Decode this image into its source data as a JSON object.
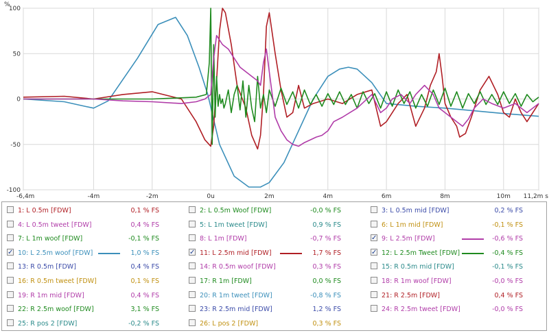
{
  "chart_data": {
    "type": "line",
    "ylabel": "%",
    "xunit": "s",
    "ylim": [
      -100,
      100
    ],
    "xlim": [
      -0.0064,
      0.0112
    ],
    "grid": true,
    "y_ticks": [
      {
        "v": 100,
        "label": "100"
      },
      {
        "v": 50,
        "label": "50"
      },
      {
        "v": 0,
        "label": "0"
      },
      {
        "v": -50,
        "label": "-50"
      },
      {
        "v": -100,
        "label": "-100"
      }
    ],
    "x_ticks": [
      {
        "v": -0.0064,
        "label": "-6,4m"
      },
      {
        "v": -0.004,
        "label": "-4m"
      },
      {
        "v": -0.002,
        "label": "-2m"
      },
      {
        "v": 0,
        "label": "0u"
      },
      {
        "v": 0.002,
        "label": "2m"
      },
      {
        "v": 0.004,
        "label": "4m"
      },
      {
        "v": 0.006,
        "label": "6m"
      },
      {
        "v": 0.008,
        "label": "8m"
      },
      {
        "v": 0.01,
        "label": "10m"
      },
      {
        "v": 0.0112,
        "label": "11,2m s"
      }
    ],
    "series": [
      {
        "name": "10: L 2.5m woof [FDW]",
        "color": "#3b8fba",
        "x": [
          -0.0064,
          -0.005,
          -0.0043,
          -0.004,
          -0.0035,
          -0.0025,
          -0.0018,
          -0.0012,
          -0.0008,
          -0.0004,
          -0.0001,
          0.0003,
          0.0008,
          0.0013,
          0.0017,
          0.002,
          0.0025,
          0.003,
          0.0035,
          0.004,
          0.0044,
          0.0047,
          0.005,
          0.0055,
          0.006,
          0.007,
          0.008,
          0.009,
          0.01,
          0.0112
        ],
        "y": [
          0,
          -3,
          -8,
          -10,
          -2,
          45,
          82,
          90,
          70,
          35,
          5,
          -50,
          -85,
          -97,
          -97,
          -92,
          -70,
          -35,
          0,
          25,
          33,
          35,
          33,
          18,
          -5,
          -8,
          -10,
          -13,
          -16,
          -19
        ]
      },
      {
        "name": "11: L 2.5m mid [FDW]",
        "color": "#b01e24",
        "x": [
          -0.0064,
          -0.005,
          -0.004,
          -0.003,
          -0.002,
          -0.001,
          -0.0005,
          -0.0002,
          0.0,
          0.0001,
          0.0002,
          0.0003,
          0.0004,
          0.0005,
          0.0007,
          0.0009,
          0.0012,
          0.0014,
          0.0016,
          0.0017,
          0.0018,
          0.0019,
          0.002,
          0.0022,
          0.0024,
          0.0026,
          0.0028,
          0.003,
          0.0032,
          0.0035,
          0.004,
          0.0045,
          0.005,
          0.0055,
          0.0058,
          0.006,
          0.0062,
          0.0064,
          0.0067,
          0.007,
          0.0073,
          0.0075,
          0.0077,
          0.0078,
          0.0079,
          0.008,
          0.0082,
          0.0084,
          0.0085,
          0.0087,
          0.0089,
          0.0092,
          0.0095,
          0.0098,
          0.01,
          0.0102,
          0.0104,
          0.0106,
          0.0108,
          0.0112
        ],
        "y": [
          2,
          3,
          0,
          5,
          8,
          0,
          -25,
          -45,
          -52,
          -30,
          20,
          75,
          100,
          95,
          60,
          15,
          -10,
          -40,
          -55,
          -40,
          5,
          80,
          95,
          50,
          10,
          -20,
          -15,
          15,
          -10,
          -5,
          0,
          -5,
          5,
          10,
          -30,
          -25,
          -15,
          -5,
          5,
          -30,
          -10,
          15,
          30,
          50,
          25,
          -5,
          -20,
          -30,
          -42,
          -38,
          -20,
          10,
          25,
          5,
          -15,
          -20,
          0,
          -15,
          -25,
          -5
        ]
      },
      {
        "name": "12: L 2.5m Tweet [FDW]",
        "color": "#1e8a1e",
        "x": [
          -0.0064,
          -0.004,
          -0.002,
          -0.0005,
          -0.00015,
          -5e-05,
          0.0,
          5e-05,
          0.0001,
          0.00015,
          0.0002,
          0.00025,
          0.0003,
          0.00035,
          0.0004,
          0.00045,
          0.0005,
          0.0006,
          0.0007,
          0.0008,
          0.0009,
          0.001,
          0.0011,
          0.0012,
          0.0013,
          0.0014,
          0.0015,
          0.0016,
          0.0017,
          0.0018,
          0.0019,
          0.002,
          0.0022,
          0.0024,
          0.0026,
          0.0028,
          0.003,
          0.0032,
          0.0034,
          0.0036,
          0.0038,
          0.004,
          0.0042,
          0.0044,
          0.0046,
          0.0048,
          0.005,
          0.0052,
          0.0054,
          0.0056,
          0.0058,
          0.006,
          0.0062,
          0.0064,
          0.0066,
          0.0068,
          0.007,
          0.0072,
          0.0074,
          0.0076,
          0.0078,
          0.008,
          0.0082,
          0.0084,
          0.0086,
          0.0088,
          0.009,
          0.0092,
          0.0094,
          0.0096,
          0.0098,
          0.01,
          0.0102,
          0.0104,
          0.0106,
          0.0108,
          0.011,
          0.0112
        ],
        "y": [
          0,
          0,
          0,
          2,
          5,
          40,
          100,
          -50,
          60,
          -20,
          25,
          -8,
          5,
          -5,
          0,
          -10,
          -5,
          10,
          -15,
          5,
          15,
          -12,
          20,
          -20,
          15,
          -10,
          -25,
          25,
          -10,
          5,
          -15,
          10,
          -8,
          12,
          -6,
          8,
          -10,
          10,
          -6,
          5,
          -8,
          6,
          -6,
          8,
          -6,
          5,
          -10,
          8,
          -5,
          6,
          -10,
          8,
          -8,
          10,
          -5,
          8,
          -10,
          5,
          -8,
          10,
          -6,
          12,
          -8,
          8,
          -10,
          6,
          -5,
          8,
          -6,
          5,
          -6,
          8,
          -5,
          6,
          -8,
          5,
          -3,
          2
        ]
      },
      {
        "name": "9: L 2.5m [FDW]",
        "color": "#b03ba8",
        "x": [
          -0.0064,
          -0.004,
          -0.003,
          -0.002,
          -0.001,
          -0.0005,
          -0.0002,
          0.0,
          0.0001,
          0.0002,
          0.0003,
          0.0004,
          0.0006,
          0.0008,
          0.001,
          0.0012,
          0.0014,
          0.0016,
          0.0017,
          0.0018,
          0.0019,
          0.002,
          0.0022,
          0.0024,
          0.0026,
          0.0028,
          0.003,
          0.0032,
          0.0034,
          0.0036,
          0.0038,
          0.004,
          0.0042,
          0.0045,
          0.005,
          0.0055,
          0.0058,
          0.006,
          0.0062,
          0.0065,
          0.0068,
          0.007,
          0.0073,
          0.0076,
          0.0078,
          0.008,
          0.0082,
          0.0084,
          0.0086,
          0.0088,
          0.009,
          0.0093,
          0.0096,
          0.01,
          0.0104,
          0.0108,
          0.0112
        ],
        "y": [
          0,
          0,
          -2,
          -3,
          -5,
          -3,
          0,
          5,
          45,
          70,
          65,
          60,
          55,
          45,
          35,
          30,
          25,
          20,
          15,
          40,
          55,
          30,
          -20,
          -35,
          -45,
          -50,
          -52,
          -48,
          -45,
          -42,
          -40,
          -35,
          -25,
          -20,
          -10,
          5,
          -15,
          -10,
          0,
          5,
          -5,
          5,
          15,
          5,
          -10,
          -15,
          -20,
          -25,
          -30,
          -22,
          -10,
          0,
          -5,
          -10,
          -5,
          -15,
          -5
        ]
      }
    ]
  },
  "legend": {
    "rows": [
      [
        {
          "label": "1: L 0.5m [FDW]",
          "value": "0,1 % FS",
          "checked": false,
          "color": "#b01e24"
        },
        {
          "label": "2: L 0.5m Woof [FDW]",
          "value": "-0,0 % FS",
          "checked": false,
          "color": "#1e8a1e"
        },
        {
          "label": "3: L 0.5m mid [FDW]",
          "value": "0,2 % FS",
          "checked": false,
          "color": "#3a4aa8"
        }
      ],
      [
        {
          "label": "4: L 0.5m tweet [FDW]",
          "value": "0,4 % FS",
          "checked": false,
          "color": "#b03ba8"
        },
        {
          "label": "5: L 1m tweet [FDW]",
          "value": "0,9 % FS",
          "checked": false,
          "color": "#2a8a8a"
        },
        {
          "label": "6: L 1m mid [FDW]",
          "value": "-0,1 % FS",
          "checked": false,
          "color": "#c09010"
        }
      ],
      [
        {
          "label": "7: L 1m woof [FDW]",
          "value": "-0,1 % FS",
          "checked": false,
          "color": "#1e8a1e"
        },
        {
          "label": "8: L 1m [FDW]",
          "value": "-0,7 % FS",
          "checked": false,
          "color": "#b03ba8"
        },
        {
          "label": "9: L  2.5m [FDW]",
          "value": "-0,6 % FS",
          "checked": true,
          "color": "#b03ba8"
        }
      ],
      [
        {
          "label": "10: L 2.5m woof [FDW]",
          "value": "1,0 % FS",
          "checked": true,
          "color": "#3b8fba"
        },
        {
          "label": "11: L 2.5m mid [FDW]",
          "value": "1,7 % FS",
          "checked": true,
          "color": "#b01e24"
        },
        {
          "label": "12: L 2.5m Tweet [FDW]",
          "value": "-0,4 % FS",
          "checked": true,
          "color": "#1e8a1e"
        }
      ],
      [
        {
          "label": "13: R 0.5m [FDW]",
          "value": "0,4 % FS",
          "checked": false,
          "color": "#3a4aa8"
        },
        {
          "label": "14: R 0.5m woof [FDW]",
          "value": "0,3 % FS",
          "checked": false,
          "color": "#b03ba8"
        },
        {
          "label": "15: R 0.5m mid [FDW]",
          "value": "-0,1 % FS",
          "checked": false,
          "color": "#2a8a8a"
        }
      ],
      [
        {
          "label": "16: R 0.5m tweet [FDW]",
          "value": "0,1 % FS",
          "checked": false,
          "color": "#c09010"
        },
        {
          "label": "17: R 1m [FDW]",
          "value": "0,0 % FS",
          "checked": false,
          "color": "#1e8a1e"
        },
        {
          "label": "18: R 1m woof [FDW]",
          "value": "-0,0 % FS",
          "checked": false,
          "color": "#b03ba8"
        }
      ],
      [
        {
          "label": "19: R 1m mid [FDW]",
          "value": "0,4 % FS",
          "checked": false,
          "color": "#b03ba8"
        },
        {
          "label": "20: R 1m tweet [FDW]",
          "value": "-0,8 % FS",
          "checked": false,
          "color": "#3b8fba"
        },
        {
          "label": "21: R 2.5m [FDW]",
          "value": "0,4 % FS",
          "checked": false,
          "color": "#b01e24"
        }
      ],
      [
        {
          "label": "22: R 2.5m woof [FDW]",
          "value": "3,1 % FS",
          "checked": false,
          "color": "#1e8a1e"
        },
        {
          "label": "23: R 2.5m mid [FDW]",
          "value": "1,2 % FS",
          "checked": false,
          "color": "#3a4aa8"
        },
        {
          "label": "24: R 2.5m tweet [FDW]",
          "value": "-0,0 % FS",
          "checked": false,
          "color": "#b03ba8"
        }
      ],
      [
        {
          "label": "25: R pos 2 [FDW]",
          "value": "-0,2 % FS",
          "checked": false,
          "color": "#2a8a8a"
        },
        {
          "label": "26: L pos 2 [FDW]",
          "value": "0,3 % FS",
          "checked": false,
          "color": "#c09010"
        }
      ]
    ]
  }
}
